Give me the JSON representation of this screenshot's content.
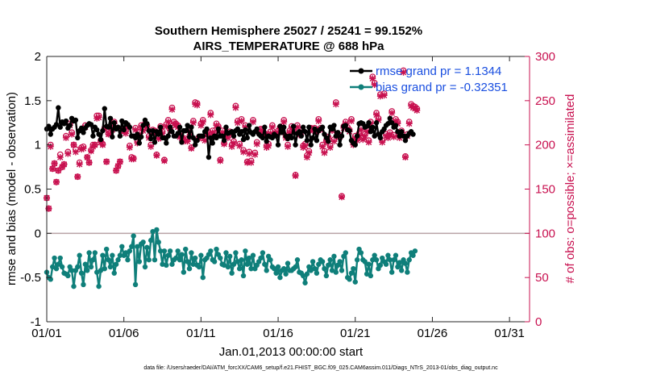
{
  "chart_data": {
    "type": "line",
    "title": "Southern Hemisphere 25027 / 25241 = 99.152%",
    "subtitle": "AIRS_TEMPERATURE @ 688 hPa",
    "xlabel": "Jan.01,2013 00:00:00 start",
    "ylabel": "rmse and bias (model - observation)",
    "y2label": "# of obs: o=possible; ×=assimilated",
    "footnote": "data file: /Users/raeder/DAI/ATM_forcXX/CAM6_setup/f.e21.FHIST_BGC.f09_025.CAM6assim.011/Diags_NTrS_2013-01/obs_diag_output.nc",
    "xlim": [
      0,
      31.3
    ],
    "ylim": [
      -1,
      2
    ],
    "y2lim": [
      0,
      300
    ],
    "x_ticks": [
      {
        "v": 0,
        "label": "01/01"
      },
      {
        "v": 5,
        "label": "01/06"
      },
      {
        "v": 10,
        "label": "01/11"
      },
      {
        "v": 15,
        "label": "01/16"
      },
      {
        "v": 20,
        "label": "01/21"
      },
      {
        "v": 25,
        "label": "01/26"
      },
      {
        "v": 30,
        "label": "01/31"
      }
    ],
    "y_ticks": [
      {
        "v": -1,
        "label": "-1"
      },
      {
        "v": -0.5,
        "label": "-0.5"
      },
      {
        "v": 0,
        "label": "0"
      },
      {
        "v": 0.5,
        "label": "0.5"
      },
      {
        "v": 1,
        "label": "1"
      },
      {
        "v": 1.5,
        "label": "1.5"
      },
      {
        "v": 2,
        "label": "2"
      }
    ],
    "y2_ticks": [
      {
        "v": 0,
        "label": "0"
      },
      {
        "v": 50,
        "label": "50"
      },
      {
        "v": 100,
        "label": "100"
      },
      {
        "v": 150,
        "label": "150"
      },
      {
        "v": 200,
        "label": "200"
      },
      {
        "v": 250,
        "label": "250"
      },
      {
        "v": 300,
        "label": "300"
      }
    ],
    "legend": [
      "rmse grand pr = 1.1344",
      "bias grand pr = -0.32351"
    ],
    "legend_position": "top-right",
    "colors": {
      "rmse": "#000000",
      "bias": "#0f7f7a",
      "obs": "#c8104f",
      "zero": "#b9a3a6"
    },
    "x_step": 0.125,
    "series": [
      {
        "name": "rmse",
        "axis": "left",
        "values": [
          1.18,
          1.21,
          1.12,
          1.18,
          1.2,
          1.23,
          1.42,
          1.2,
          1.26,
          1.24,
          1.27,
          1.19,
          1.22,
          1.3,
          1.27,
          1.28,
          1.08,
          1.16,
          1.19,
          1.14,
          1.19,
          1.22,
          1.24,
          1.23,
          1.1,
          1.2,
          1.17,
          1.12,
          1.06,
          1.16,
          1.41,
          1.21,
          1.2,
          1.3,
          1.09,
          1.25,
          1.18,
          1.2,
          1.1,
          1.27,
          1.17,
          1.25,
          1.23,
          1.2,
          1.1,
          1.1,
          1.08,
          1.12,
          1.02,
          1.09,
          1.22,
          1.28,
          1.24,
          1.16,
          1.07,
          1.16,
          1.03,
          1.15,
          1.12,
          1.2,
          1.08,
          1.08,
          1.02,
          1.1,
          1.2,
          1.15,
          1.1,
          1.1,
          1.13,
          1.2,
          1.03,
          1.16,
          1.16,
          1.22,
          1.09,
          1.2,
          1.08,
          1.0,
          1.05,
          1.1,
          1.1,
          1.1,
          1.15,
          1.18,
          0.86,
          1.08,
          1.02,
          1.1,
          1.08,
          1.18,
          1.1,
          1.1,
          1.05,
          1.2,
          1.13,
          1.14,
          1.15,
          1.1,
          1.16,
          1.18,
          1.12,
          1.15,
          1.06,
          1.17,
          1.08,
          1.22,
          1.14,
          1.12,
          1.15,
          1.18,
          1.12,
          1.1,
          1.08,
          1.2,
          1.04,
          1.1,
          1.09,
          1.08,
          1.12,
          1.1,
          1.0,
          1.21,
          1.14,
          1.2,
          1.1,
          1.07,
          1.1,
          1.08,
          1.21,
          1.0,
          1.13,
          1.15,
          1.1,
          1.2,
          1.15,
          1.05,
          1.2,
          1.0,
          1.08,
          1.18,
          1.05,
          1.16,
          1.18,
          1.2,
          1.12,
          1.08,
          1.04,
          1.2,
          1.18,
          1.22,
          1.1,
          1.14,
          1.0,
          1.1,
          1.21,
          1.22,
          1.17,
          1.16,
          1.05,
          1.02,
          1.0,
          1.1,
          1.24,
          1.25,
          1.24,
          1.2,
          1.21,
          1.25,
          1.15,
          1.2,
          1.1,
          1.25,
          1.12,
          1.08,
          1.15,
          1.18,
          1.22,
          1.24,
          1.3,
          1.25,
          1.2,
          1.22,
          1.15,
          1.1,
          1.15,
          1.1,
          1.05,
          1.1,
          1.13,
          1.15,
          1.12
        ]
      },
      {
        "name": "bias",
        "axis": "left",
        "values": [
          -0.44,
          -0.5,
          -0.52,
          -0.38,
          -0.28,
          -0.4,
          -0.35,
          -0.28,
          -0.38,
          -0.45,
          -0.46,
          -0.48,
          -0.38,
          -0.42,
          -0.6,
          -0.42,
          -0.38,
          -0.25,
          -0.45,
          -0.58,
          -0.35,
          -0.42,
          -0.22,
          -0.38,
          -0.3,
          -0.22,
          -0.44,
          -0.6,
          -0.42,
          -0.25,
          -0.4,
          -0.18,
          -0.3,
          -0.38,
          -0.25,
          -0.45,
          -0.35,
          -0.3,
          -0.25,
          -0.15,
          -0.25,
          -0.22,
          -0.3,
          -0.2,
          -0.15,
          -0.03,
          -0.58,
          -0.15,
          -0.32,
          -0.12,
          -0.1,
          -0.38,
          -0.16,
          -0.3,
          -0.08,
          0.02,
          -0.3,
          0.04,
          -0.1,
          -0.2,
          -0.35,
          -0.2,
          -0.36,
          -0.25,
          -0.2,
          -0.35,
          -0.3,
          -0.28,
          -0.2,
          -0.3,
          -0.24,
          -0.44,
          -0.18,
          -0.32,
          -0.4,
          -0.22,
          -0.35,
          -0.28,
          -0.36,
          -0.38,
          -0.25,
          -0.5,
          -0.3,
          -0.28,
          -0.24,
          -0.2,
          -0.3,
          -0.32,
          -0.18,
          -0.24,
          -0.28,
          -0.35,
          -0.36,
          -0.22,
          -0.38,
          -0.26,
          -0.45,
          -0.35,
          -0.22,
          -0.32,
          -0.4,
          -0.3,
          -0.48,
          -0.2,
          -0.35,
          -0.28,
          -0.4,
          -0.25,
          -0.4,
          -0.36,
          -0.32,
          -0.28,
          -0.22,
          -0.35,
          -0.42,
          -0.26,
          -0.3,
          -0.38,
          -0.4,
          -0.45,
          -0.38,
          -0.5,
          -0.42,
          -0.4,
          -0.46,
          -0.34,
          -0.42,
          -0.42,
          -0.4,
          -0.38,
          -0.3,
          -0.44,
          -0.45,
          -0.48,
          -0.56,
          -0.46,
          -0.38,
          -0.42,
          -0.32,
          -0.4,
          -0.45,
          -0.35,
          -0.3,
          -0.32,
          -0.4,
          -0.48,
          -0.36,
          -0.3,
          -0.42,
          -0.26,
          -0.44,
          -0.36,
          -0.32,
          -0.42,
          -0.26,
          -0.22,
          -0.5,
          -0.52,
          -0.45,
          -0.4,
          -0.55,
          -0.3,
          -0.18,
          -0.22,
          -0.3,
          -0.32,
          -0.46,
          -0.35,
          -0.48,
          -0.3,
          -0.25,
          -0.3,
          -0.4,
          -0.36,
          -0.28,
          -0.32,
          -0.35,
          -0.25,
          -0.3,
          -0.44,
          -0.3,
          -0.25,
          -0.38,
          -0.33,
          -0.42,
          -0.3,
          -0.34,
          -0.44,
          -0.3,
          -0.22,
          -0.25,
          -0.2
        ]
      },
      {
        "name": "obs_possible",
        "axis": "right",
        "values": [
          140,
          128,
          200,
          173,
          179,
          158,
          171,
          189,
          175,
          178,
          210,
          192,
          224,
          214,
          200,
          195,
          164,
          180,
          197,
          198,
          222,
          186,
          180,
          194,
          200,
          200,
          233,
          233,
          205,
          201,
          219,
          181,
          213,
          214,
          219,
          226,
          171,
          176,
          181,
          218,
          217,
          216,
          222,
          199,
          186,
          185,
          219,
          204,
          214,
          222,
          218,
          224,
          222,
          210,
          200,
          217,
          216,
          189,
          209,
          221,
          215,
          183,
          223,
          228,
          218,
          242,
          226,
          224,
          222,
          211,
          209,
          206,
          207,
          206,
          216,
          197,
          227,
          248,
          247,
          209,
          224,
          228,
          207,
          213,
          214,
          236,
          216,
          213,
          224,
          221,
          183,
          216,
          202,
          213,
          210,
          215,
          200,
          204,
          244,
          227,
          201,
          229,
          194,
          222,
          181,
          192,
          182,
          228,
          191,
          203,
          217,
          218,
          217,
          213,
          199,
          201,
          215,
          222,
          213,
          213,
          216,
          220,
          221,
          228,
          210,
          200,
          216,
          221,
          217,
          166,
          222,
          213,
          216,
          199,
          201,
          188,
          193,
          219,
          218,
          219,
          217,
          229,
          219,
          200,
          193,
          205,
          209,
          199,
          218,
          206,
          248,
          212,
          211,
          142,
          221,
          226,
          220,
          217,
          229,
          202,
          210,
          207,
          213,
          219,
          208,
          212,
          217,
          205,
          226,
          277,
          270,
          236,
          230,
          257,
          205,
          258,
          212,
          210,
          214,
          238,
          211,
          229,
          226,
          210,
          216,
          284,
          187,
          212,
          226,
          246,
          244,
          243,
          241
        ]
      },
      {
        "name": "obs_assimilated",
        "axis": "right",
        "values": [
          140,
          128,
          198,
          173,
          179,
          158,
          171,
          186,
          175,
          178,
          208,
          190,
          222,
          212,
          200,
          192,
          164,
          178,
          195,
          196,
          220,
          186,
          180,
          193,
          198,
          200,
          230,
          231,
          203,
          200,
          218,
          181,
          212,
          212,
          217,
          224,
          171,
          176,
          181,
          216,
          215,
          213,
          220,
          197,
          184,
          184,
          217,
          202,
          212,
          220,
          216,
          222,
          220,
          208,
          198,
          215,
          214,
          188,
          207,
          219,
          213,
          182,
          221,
          226,
          216,
          240,
          224,
          222,
          220,
          209,
          207,
          204,
          205,
          204,
          214,
          196,
          225,
          246,
          245,
          207,
          222,
          226,
          205,
          211,
          212,
          234,
          214,
          211,
          222,
          219,
          182,
          214,
          201,
          211,
          208,
          213,
          198,
          202,
          242,
          225,
          199,
          227,
          192,
          220,
          180,
          190,
          180,
          226,
          189,
          201,
          215,
          216,
          215,
          211,
          197,
          199,
          213,
          220,
          211,
          211,
          214,
          218,
          219,
          226,
          208,
          198,
          214,
          219,
          215,
          165,
          220,
          211,
          214,
          197,
          199,
          186,
          191,
          217,
          216,
          217,
          215,
          227,
          217,
          198,
          191,
          203,
          207,
          197,
          216,
          204,
          246,
          210,
          209,
          141,
          219,
          224,
          218,
          215,
          227,
          200,
          208,
          205,
          211,
          217,
          206,
          210,
          215,
          203,
          224,
          275,
          268,
          234,
          228,
          255,
          203,
          256,
          210,
          208,
          212,
          236,
          209,
          227,
          224,
          208,
          214,
          282,
          186,
          210,
          224,
          244,
          242,
          241,
          239
        ]
      }
    ]
  }
}
